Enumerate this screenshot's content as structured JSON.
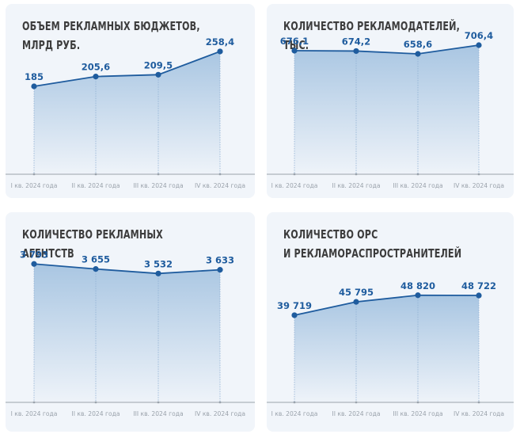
{
  "colors": {
    "line": "#1f5c9e",
    "fill_top": "#a9c6e2",
    "fill_bottom": "#eef3f9",
    "axis": "#9aa2ab",
    "card_bg": "#f1f5fa",
    "title": "#3d3d3d"
  },
  "chart_data": [
    {
      "type": "area",
      "title_lines": [
        "ОБЪЕМ РЕКЛАМНЫХ БЮДЖЕТОВ,",
        "МЛРД РУБ."
      ],
      "categories": [
        "I кв. 2024 года",
        "II кв. 2024 года",
        "III кв. 2024 года",
        "IV кв. 2024 года"
      ],
      "values": [
        185,
        205.6,
        209.5,
        258.4
      ],
      "labels": [
        "185",
        "205,6",
        "209,5",
        "258,4"
      ],
      "ylim": [
        0,
        300
      ],
      "grid": false,
      "legend": "none"
    },
    {
      "type": "area",
      "title_lines": [
        "КОЛИЧЕСТВО РЕКЛАМОДАТЕЛЕЙ,",
        "ТЫС."
      ],
      "categories": [
        "I кв. 2024 года",
        "II кв. 2024 года",
        "III кв. 2024 года",
        "IV кв. 2024 года"
      ],
      "values": [
        676.1,
        674.2,
        658.6,
        706.4
      ],
      "labels": [
        "676,1",
        "674,2",
        "658,6",
        "706,4"
      ],
      "ylim": [
        0,
        780
      ],
      "grid": false,
      "legend": "none"
    },
    {
      "type": "area",
      "title_lines": [
        "КОЛИЧЕСТВО РЕКЛАМНЫХ",
        "АГЕНТСТВ"
      ],
      "categories": [
        "I кв. 2024 года",
        "II кв. 2024 года",
        "III кв. 2024 года",
        "IV кв. 2024 года"
      ],
      "values": [
        3793,
        3655,
        3532,
        3633
      ],
      "labels": [
        "3 793",
        "3 655",
        "3 532",
        "3 633"
      ],
      "ylim": [
        0,
        4450
      ],
      "grid": false,
      "legend": "none"
    },
    {
      "type": "area",
      "title_lines": [
        "КОЛИЧЕСТВО ОРС",
        "И РЕКЛАМОРАСПРОСТРАНИТЕЛЕЙ"
      ],
      "categories": [
        "I кв. 2024 года",
        "II кв. 2024 года",
        "III кв. 2024 года",
        "IV кв. 2024 года"
      ],
      "values": [
        39719,
        45795,
        48820,
        48722
      ],
      "labels": [
        "39 719",
        "45 795",
        "48 820",
        "48 722"
      ],
      "ylim": [
        0,
        74000
      ],
      "grid": false,
      "legend": "none"
    }
  ]
}
